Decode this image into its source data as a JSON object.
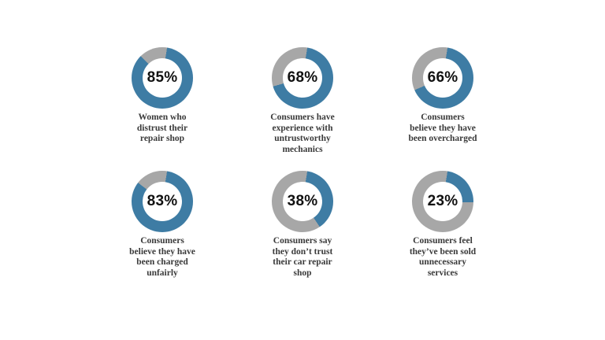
{
  "page": {
    "background": "#ffffff"
  },
  "colors": {
    "fill": "#3e7ca4",
    "track": "#a7a7a7",
    "percent_text": "#111111",
    "caption_text": "#3a3a3a"
  },
  "chart_data": [
    {
      "type": "pie",
      "subtype": "donut",
      "percent": 85,
      "values": [
        85,
        15
      ],
      "label": "85%",
      "caption": "Women who\ndistrust their\nrepair shop",
      "legend": "none",
      "start_angle_deg": 9
    },
    {
      "type": "pie",
      "subtype": "donut",
      "percent": 68,
      "values": [
        68,
        32
      ],
      "label": "68%",
      "caption": "Consumers have\nexperience with\nuntrustworthy\nmechanics",
      "legend": "none",
      "start_angle_deg": 9
    },
    {
      "type": "pie",
      "subtype": "donut",
      "percent": 66,
      "values": [
        66,
        34
      ],
      "label": "66%",
      "caption": "Consumers\nbelieve they have\nbeen overcharged",
      "legend": "none",
      "start_angle_deg": 9
    },
    {
      "type": "pie",
      "subtype": "donut",
      "percent": 83,
      "values": [
        83,
        17
      ],
      "label": "83%",
      "caption": "Consumers\nbelieve they have\nbeen charged\nunfairly",
      "legend": "none",
      "start_angle_deg": 9
    },
    {
      "type": "pie",
      "subtype": "donut",
      "percent": 38,
      "values": [
        38,
        62
      ],
      "label": "38%",
      "caption": "Consumers say\nthey don’t trust\ntheir car repair\nshop",
      "legend": "none",
      "start_angle_deg": 9
    },
    {
      "type": "pie",
      "subtype": "donut",
      "percent": 23,
      "values": [
        23,
        77
      ],
      "label": "23%",
      "caption": "Consumers feel\nthey’ve been sold\nunnecessary\nservices",
      "legend": "none",
      "start_angle_deg": 9
    }
  ]
}
